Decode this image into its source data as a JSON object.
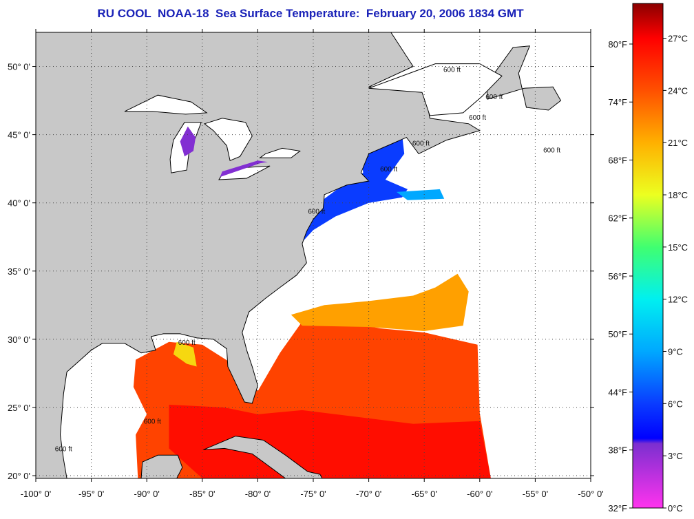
{
  "title": "RU COOL  NOAA-18  Sea Surface Temperature:  February 20, 2006 1834 GMT",
  "chart_data": {
    "type": "heatmap",
    "title": "RU COOL  NOAA-18  Sea Surface Temperature:  February 20, 2006 1834 GMT",
    "xlim": [
      -100,
      -50
    ],
    "ylim": [
      19.8,
      52.5
    ],
    "x_ticks": [
      {
        "value": -100,
        "label": "-100° 0'"
      },
      {
        "value": -95,
        "label": "-95° 0'"
      },
      {
        "value": -90,
        "label": "-90° 0'"
      },
      {
        "value": -85,
        "label": "-85° 0'"
      },
      {
        "value": -80,
        "label": "-80° 0'"
      },
      {
        "value": -75,
        "label": "-75° 0'"
      },
      {
        "value": -70,
        "label": "-70° 0'"
      },
      {
        "value": -65,
        "label": "-65° 0'"
      },
      {
        "value": -60,
        "label": "-60° 0'"
      },
      {
        "value": -55,
        "label": "-55° 0'"
      },
      {
        "value": -50,
        "label": "-50° 0'"
      }
    ],
    "y_ticks": [
      {
        "value": 20,
        "label": "20° 0'"
      },
      {
        "value": 25,
        "label": "25° 0'"
      },
      {
        "value": 30,
        "label": "30° 0'"
      },
      {
        "value": 35,
        "label": "35° 0'"
      },
      {
        "value": 40,
        "label": "40° 0'"
      },
      {
        "value": 45,
        "label": "45° 0'"
      },
      {
        "value": 50,
        "label": "50° 0'"
      }
    ],
    "grid": true,
    "contour_labels": [
      {
        "text": "600 ft",
        "lon": -86.4,
        "lat": 29.6
      },
      {
        "text": "600 ft",
        "lon": -89.5,
        "lat": 23.8
      },
      {
        "text": "600 ft",
        "lon": -97.5,
        "lat": 21.8
      },
      {
        "text": "600 ft",
        "lon": -74.7,
        "lat": 39.2
      },
      {
        "text": "600 ft",
        "lon": -68.2,
        "lat": 42.3
      },
      {
        "text": "600 ft",
        "lon": -65.3,
        "lat": 44.2
      },
      {
        "text": "600 ft",
        "lon": -60.2,
        "lat": 46.1
      },
      {
        "text": "600 ft",
        "lon": -53.5,
        "lat": 43.7
      },
      {
        "text": "600 ft",
        "lon": -62.5,
        "lat": 49.6
      },
      {
        "text": "600 ft",
        "lon": -58.7,
        "lat": 47.6
      }
    ],
    "colorbar": {
      "celsius_ticks": [
        {
          "value": 0,
          "label": "0°C"
        },
        {
          "value": 3,
          "label": "3°C"
        },
        {
          "value": 6,
          "label": "6°C"
        },
        {
          "value": 9,
          "label": "9°C"
        },
        {
          "value": 12,
          "label": "12°C"
        },
        {
          "value": 15,
          "label": "15°C"
        },
        {
          "value": 18,
          "label": "18°C"
        },
        {
          "value": 21,
          "label": "21°C"
        },
        {
          "value": 24,
          "label": "24°C"
        },
        {
          "value": 27,
          "label": "27°C"
        }
      ],
      "fahrenheit_ticks": [
        {
          "value": 32,
          "label": "32°F"
        },
        {
          "value": 38,
          "label": "38°F"
        },
        {
          "value": 44,
          "label": "44°F"
        },
        {
          "value": 50,
          "label": "50°F"
        },
        {
          "value": 56,
          "label": "56°F"
        },
        {
          "value": 62,
          "label": "62°F"
        },
        {
          "value": 68,
          "label": "68°F"
        },
        {
          "value": 74,
          "label": "74°F"
        },
        {
          "value": 80,
          "label": "80°F"
        }
      ],
      "range_celsius": [
        0,
        29
      ],
      "stops": [
        {
          "value": 0,
          "color": "#ff33ee"
        },
        {
          "value": 3.7,
          "color": "#7b2fd0"
        },
        {
          "value": 4,
          "color": "#0000ff"
        },
        {
          "value": 6,
          "color": "#0a3cff"
        },
        {
          "value": 9,
          "color": "#00a8ff"
        },
        {
          "value": 12,
          "color": "#00f0f0"
        },
        {
          "value": 15,
          "color": "#40ff70"
        },
        {
          "value": 18,
          "color": "#ecff20"
        },
        {
          "value": 21,
          "color": "#ffb000"
        },
        {
          "value": 24,
          "color": "#ff5000"
        },
        {
          "value": 27,
          "color": "#ff0000"
        },
        {
          "value": 29,
          "color": "#8a0000"
        }
      ]
    },
    "sst_regions": [
      {
        "name": "gulf-stream-south",
        "temp_c": 24.5,
        "polygon": [
          [
            -91,
            28.5
          ],
          [
            -88,
            29.8
          ],
          [
            -85,
            29.6
          ],
          [
            -81.5,
            27.8
          ],
          [
            -80,
            26.2
          ],
          [
            -78,
            29
          ],
          [
            -76,
            31.3
          ],
          [
            -72,
            31.3
          ],
          [
            -69,
            30.8
          ],
          [
            -65,
            30.5
          ],
          [
            -60.2,
            29.6
          ],
          [
            -60,
            24.6
          ],
          [
            -59,
            19.8
          ],
          [
            -90.8,
            19.8
          ],
          [
            -91,
            23
          ],
          [
            -90,
            24.5
          ],
          [
            -91.2,
            26.5
          ]
        ]
      },
      {
        "name": "gulf-stream-core",
        "temp_c": 26.5,
        "polygon": [
          [
            -88,
            25.2
          ],
          [
            -83,
            25
          ],
          [
            -80,
            24.5
          ],
          [
            -76,
            24.8
          ],
          [
            -70,
            24.2
          ],
          [
            -66,
            23.8
          ],
          [
            -60,
            24
          ],
          [
            -59,
            19.8
          ],
          [
            -85,
            19.8
          ],
          [
            -88,
            22
          ]
        ]
      },
      {
        "name": "sargasso-warm-north",
        "temp_c": 21.5,
        "polygon": [
          [
            -77,
            31.8
          ],
          [
            -74,
            32.5
          ],
          [
            -70,
            32.8
          ],
          [
            -66,
            33.2
          ],
          [
            -64,
            33.8
          ],
          [
            -62,
            34.8
          ],
          [
            -61,
            33.5
          ],
          [
            -61.5,
            31
          ],
          [
            -65,
            30.6
          ],
          [
            -70,
            30.9
          ],
          [
            -76,
            31
          ]
        ]
      },
      {
        "name": "gulf-shelf-cool",
        "temp_c": 19.5,
        "polygon": [
          [
            -87.3,
            29.8
          ],
          [
            -85.8,
            29.4
          ],
          [
            -85.5,
            28
          ],
          [
            -86.4,
            28.2
          ],
          [
            -87.6,
            28.9
          ]
        ]
      },
      {
        "name": "mid-atlantic-cold",
        "temp_c": 6,
        "polygon": [
          [
            -77.2,
            36.4
          ],
          [
            -76,
            38.5
          ],
          [
            -74,
            40.3
          ],
          [
            -72,
            41.5
          ],
          [
            -70.5,
            42.2
          ],
          [
            -70.7,
            43.6
          ],
          [
            -69,
            44.3
          ],
          [
            -67,
            45
          ],
          [
            -66.8,
            43.6
          ],
          [
            -68.5,
            41.7
          ],
          [
            -66.5,
            41
          ],
          [
            -67,
            40.4
          ],
          [
            -70,
            40
          ],
          [
            -73,
            39
          ],
          [
            -75,
            38
          ],
          [
            -76.6,
            36.6
          ]
        ]
      },
      {
        "name": "scotian-slope-cool",
        "temp_c": 9,
        "polygon": [
          [
            -67.5,
            40.8
          ],
          [
            -63.6,
            41
          ],
          [
            -63.2,
            40.3
          ],
          [
            -66.5,
            40.2
          ]
        ]
      },
      {
        "name": "lake-michigan-cold",
        "temp_c": 3.5,
        "polygon": [
          [
            -86.3,
            45.6
          ],
          [
            -85.6,
            44.8
          ],
          [
            -85.8,
            43.8
          ],
          [
            -86.6,
            43.4
          ],
          [
            -87,
            44.5
          ]
        ]
      },
      {
        "name": "lake-erie-cold",
        "temp_c": 3.5,
        "polygon": [
          [
            -83.4,
            41.9
          ],
          [
            -79.8,
            42.9
          ],
          [
            -79.1,
            43
          ],
          [
            -80,
            43.1
          ],
          [
            -83.2,
            42.3
          ]
        ]
      }
    ],
    "land_polygons": [
      {
        "name": "north-america",
        "polygon": [
          [
            -100,
            52.5
          ],
          [
            -68,
            52.5
          ],
          [
            -66,
            50
          ],
          [
            -70,
            48.5
          ],
          [
            -65,
            48.6
          ],
          [
            -64.5,
            46.2
          ],
          [
            -61,
            45.8
          ],
          [
            -60,
            45.3
          ],
          [
            -63,
            44.6
          ],
          [
            -65.5,
            43.6
          ],
          [
            -66.6,
            44.8
          ],
          [
            -68,
            44.3
          ],
          [
            -70,
            43.6
          ],
          [
            -70.7,
            42.2
          ],
          [
            -70,
            41.6
          ],
          [
            -72,
            41.3
          ],
          [
            -74,
            40.6
          ],
          [
            -74.1,
            39.6
          ],
          [
            -75,
            38.8
          ],
          [
            -75.6,
            37.9
          ],
          [
            -76,
            37
          ],
          [
            -75.6,
            35.6
          ],
          [
            -76.5,
            34.7
          ],
          [
            -78,
            33.8
          ],
          [
            -79.3,
            33
          ],
          [
            -80.8,
            32
          ],
          [
            -81.4,
            30.5
          ],
          [
            -81,
            29.2
          ],
          [
            -80.5,
            28
          ],
          [
            -80,
            26.6
          ],
          [
            -80.5,
            25.3
          ],
          [
            -81.2,
            25.4
          ],
          [
            -82,
            26.8
          ],
          [
            -82.7,
            28
          ],
          [
            -82.8,
            29.3
          ],
          [
            -84,
            30
          ],
          [
            -85.5,
            30.1
          ],
          [
            -87,
            30.4
          ],
          [
            -88.5,
            30.4
          ],
          [
            -89.6,
            30.2
          ],
          [
            -89.2,
            29.2
          ],
          [
            -90.5,
            29
          ],
          [
            -92,
            29.7
          ],
          [
            -94,
            29.7
          ],
          [
            -95,
            29.2
          ],
          [
            -97.2,
            27.6
          ],
          [
            -97.5,
            26
          ],
          [
            -97.8,
            23
          ],
          [
            -97.5,
            21.2
          ],
          [
            -97.2,
            19.8
          ],
          [
            -100,
            19.8
          ]
        ]
      },
      {
        "name": "newfoundland",
        "polygon": [
          [
            -59.3,
            47.6
          ],
          [
            -56,
            48.4
          ],
          [
            -53.4,
            48.5
          ],
          [
            -52.7,
            47.5
          ],
          [
            -53.8,
            46.8
          ],
          [
            -55.8,
            47
          ],
          [
            -56.5,
            49.5
          ],
          [
            -55.5,
            51.5
          ],
          [
            -57,
            51.4
          ],
          [
            -59.4,
            48.7
          ]
        ]
      },
      {
        "name": "cuba",
        "polygon": [
          [
            -84.9,
            21.9
          ],
          [
            -82,
            22.9
          ],
          [
            -79.5,
            22.6
          ],
          [
            -77.5,
            21.5
          ],
          [
            -75.5,
            20.3
          ],
          [
            -74.4,
            20.1
          ],
          [
            -74.2,
            19.8
          ],
          [
            -77.5,
            19.8
          ],
          [
            -80.5,
            21.6
          ],
          [
            -83,
            22
          ]
        ]
      },
      {
        "name": "yucatan",
        "polygon": [
          [
            -90.5,
            19.8
          ],
          [
            -90.4,
            21
          ],
          [
            -89,
            21.5
          ],
          [
            -87.2,
            21.5
          ],
          [
            -86.8,
            20.6
          ],
          [
            -87.3,
            19.8
          ]
        ]
      }
    ],
    "lakes": [
      {
        "name": "lake-superior",
        "polygon": [
          [
            -92,
            46.7
          ],
          [
            -89,
            47.9
          ],
          [
            -86,
            47.4
          ],
          [
            -84.6,
            46.6
          ],
          [
            -86.5,
            46.5
          ],
          [
            -89.5,
            46.7
          ]
        ]
      },
      {
        "name": "lake-michigan",
        "polygon": [
          [
            -87.8,
            42.2
          ],
          [
            -86.4,
            42.4
          ],
          [
            -86.2,
            43.7
          ],
          [
            -85.6,
            44.8
          ],
          [
            -85.1,
            45.9
          ],
          [
            -86.6,
            45.9
          ],
          [
            -87.6,
            44.6
          ],
          [
            -87.9,
            43.2
          ]
        ]
      },
      {
        "name": "lake-huron",
        "polygon": [
          [
            -84.8,
            45.8
          ],
          [
            -83.2,
            46.2
          ],
          [
            -81.1,
            45.9
          ],
          [
            -80.5,
            44.9
          ],
          [
            -81.6,
            43.4
          ],
          [
            -82.5,
            43.1
          ],
          [
            -82.8,
            44.2
          ],
          [
            -84,
            45.3
          ]
        ]
      },
      {
        "name": "lake-erie",
        "polygon": [
          [
            -83.5,
            41.7
          ],
          [
            -81,
            41.8
          ],
          [
            -78.9,
            42.7
          ],
          [
            -81,
            42.6
          ],
          [
            -83.2,
            42.1
          ]
        ]
      },
      {
        "name": "lake-ontario",
        "polygon": [
          [
            -79.8,
            43.3
          ],
          [
            -77,
            43.3
          ],
          [
            -76.2,
            43.8
          ],
          [
            -77.8,
            44
          ],
          [
            -79.3,
            43.6
          ]
        ]
      },
      {
        "name": "gulf-of-st-lawrence",
        "polygon": [
          [
            -70,
            48.4
          ],
          [
            -66,
            49.6
          ],
          [
            -64,
            50.2
          ],
          [
            -60,
            50.2
          ],
          [
            -58,
            49.3
          ],
          [
            -59.8,
            47.8
          ],
          [
            -61.5,
            46.6
          ],
          [
            -64.5,
            46.4
          ],
          [
            -65.2,
            48.1
          ]
        ]
      }
    ]
  }
}
